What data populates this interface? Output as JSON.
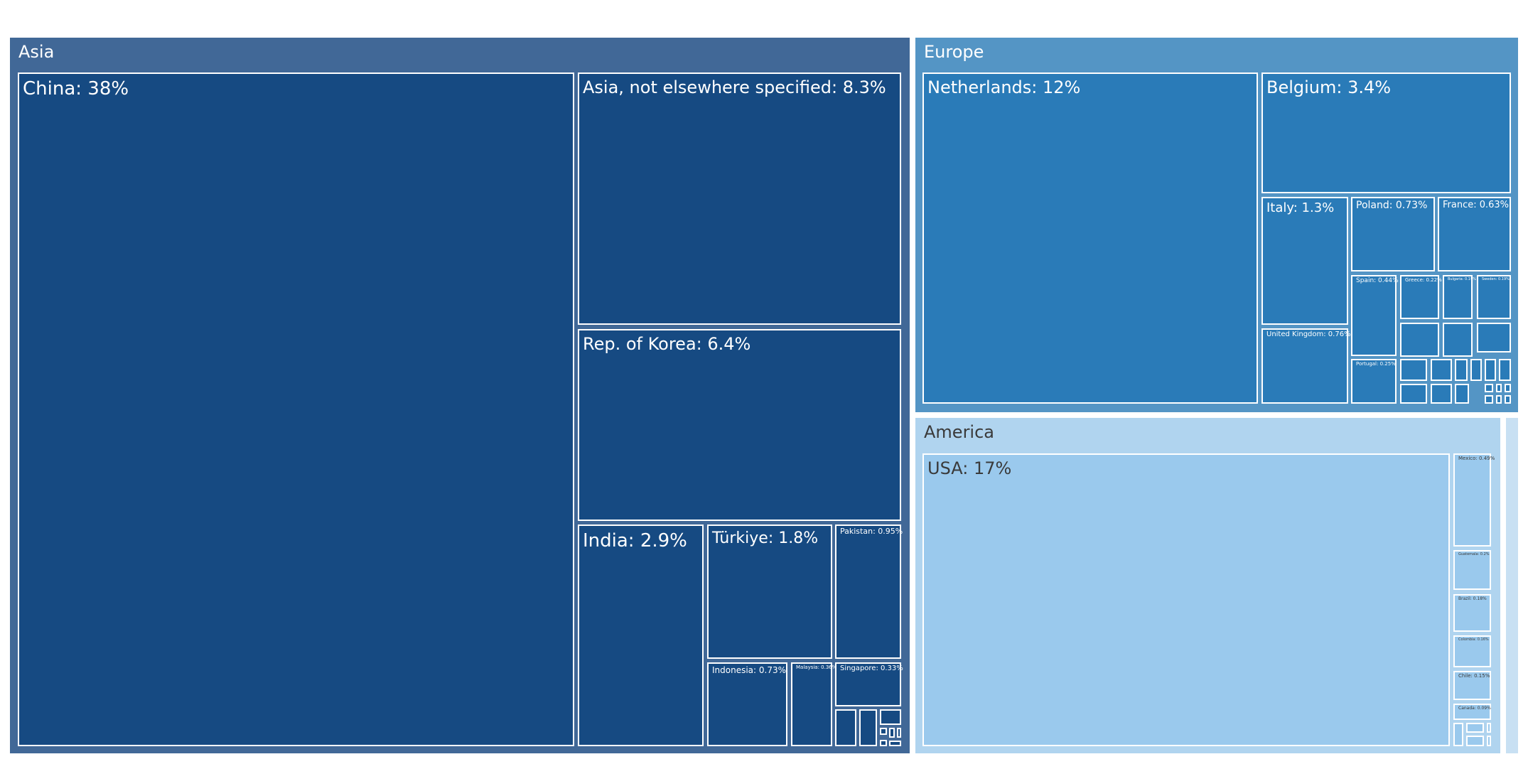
{
  "chart_data": {
    "type": "treemap",
    "colors": {
      "asia_region": "#416897",
      "asia_cell": "#164a82",
      "europe_region": "#5495c5",
      "europe_cell": "#2a7bb8",
      "america_region": "#b0d4ef",
      "america_cell": "#9ac9ed",
      "other_region": "#c8e0f3",
      "light_text": "#ffffff",
      "dark_text": "#3a3a3a"
    },
    "regions": [
      {
        "name": "Asia",
        "items": [
          {
            "label": "China: 38%",
            "value": 38
          },
          {
            "label": "Asia, not elsewhere specified: 8.3%",
            "value": 8.3
          },
          {
            "label": "Rep. of Korea: 6.4%",
            "value": 6.4
          },
          {
            "label": "India: 2.9%",
            "value": 2.9
          },
          {
            "label": "Türkiye: 1.8%",
            "value": 1.8
          },
          {
            "label": "Pakistan: 0.95%",
            "value": 0.95
          },
          {
            "label": "Indonesia: 0.73%",
            "value": 0.73
          },
          {
            "label": "Malaysia: 0.36%",
            "value": 0.36
          },
          {
            "label": "Singapore: 0.33%",
            "value": 0.33
          }
        ]
      },
      {
        "name": "Europe",
        "items": [
          {
            "label": "Netherlands: 12%",
            "value": 12
          },
          {
            "label": "Belgium: 3.4%",
            "value": 3.4
          },
          {
            "label": "Italy: 1.3%",
            "value": 1.3
          },
          {
            "label": "Poland: 0.73%",
            "value": 0.73
          },
          {
            "label": "France: 0.63%",
            "value": 0.63
          },
          {
            "label": "United Kingdom: 0.76%",
            "value": 0.76
          },
          {
            "label": "Spain: 0.44%",
            "value": 0.44
          },
          {
            "label": "Greece: 0.22%",
            "value": 0.22
          },
          {
            "label": "Bulgaria: 0.19%",
            "value": 0.19
          },
          {
            "label": "Sweden: 0.19%",
            "value": 0.19
          },
          {
            "label": "Portugal: 0.25%",
            "value": 0.25
          }
        ]
      },
      {
        "name": "America",
        "items": [
          {
            "label": "USA: 17%",
            "value": 17
          },
          {
            "label": "Mexico: 0.49%",
            "value": 0.49
          },
          {
            "label": "Guatemala: 0.2%",
            "value": 0.2
          },
          {
            "label": "Brazil: 0.18%",
            "value": 0.18
          },
          {
            "label": "Colombia: 0.16%",
            "value": 0.16
          },
          {
            "label": "Chile: 0.15%",
            "value": 0.15
          },
          {
            "label": "Canada: 0.09%",
            "value": 0.09
          }
        ]
      },
      {
        "name": "",
        "items": []
      }
    ]
  }
}
